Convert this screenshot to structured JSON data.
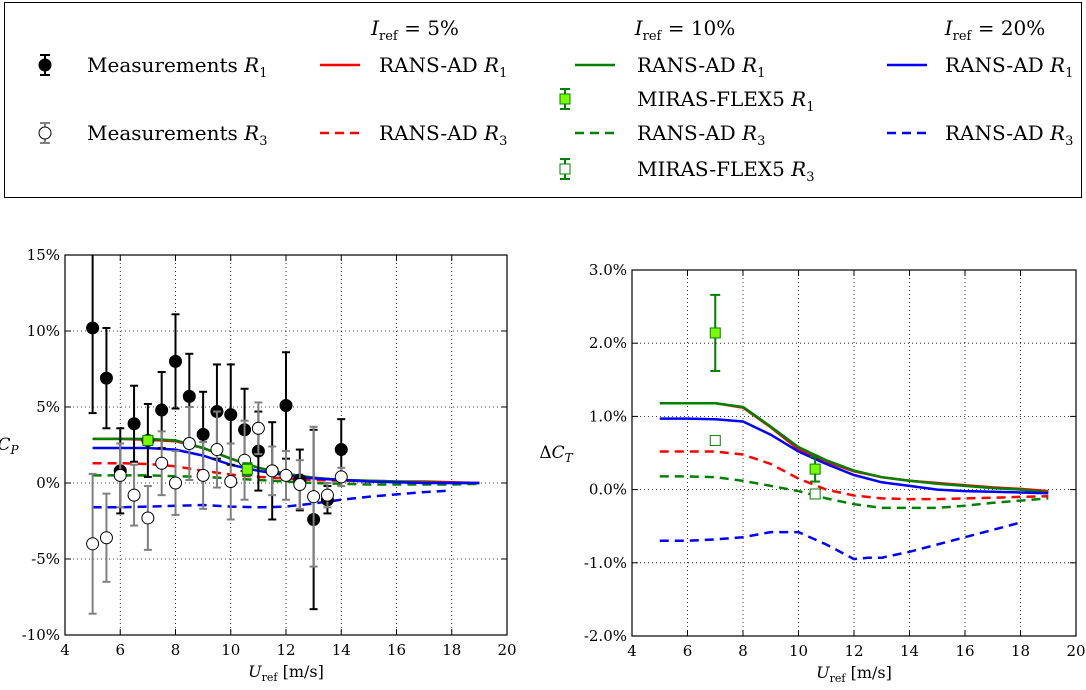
{
  "legend": {
    "groups": [
      {
        "pre": "I",
        "sub": "ref",
        "post": " = 5%"
      },
      {
        "pre": "I",
        "sub": "ref",
        "post": " = 10%"
      },
      {
        "pre": "I",
        "sub": "ref",
        "post": " = 20%"
      }
    ],
    "entries": [
      {
        "text": "Measurements ",
        "var": "R",
        "sub": "1",
        "color": "#000000",
        "marker": "filled-circle"
      },
      {
        "text": "Measurements ",
        "var": "R",
        "sub": "3",
        "color": "#808080",
        "marker": "open-circle"
      },
      {
        "text": "RANS-AD ",
        "var": "R",
        "sub": "1",
        "color": "#ff0000",
        "dash": false
      },
      {
        "text": "RANS-AD ",
        "var": "R",
        "sub": "3",
        "color": "#ff0000",
        "dash": true
      },
      {
        "text": "RANS-AD ",
        "var": "R",
        "sub": "1",
        "color": "#008000",
        "dash": false
      },
      {
        "text": "MIRAS-FLEX5 ",
        "var": "R",
        "sub": "1",
        "color": "#008000",
        "marker": "filled-square"
      },
      {
        "text": "RANS-AD ",
        "var": "R",
        "sub": "3",
        "color": "#008000",
        "dash": true
      },
      {
        "text": "MIRAS-FLEX5 ",
        "var": "R",
        "sub": "3",
        "color": "#008000",
        "marker": "open-square"
      },
      {
        "text": "RANS-AD ",
        "var": "R",
        "sub": "1",
        "color": "#0000ff",
        "dash": false
      },
      {
        "text": "RANS-AD ",
        "var": "R",
        "sub": "3",
        "color": "#0000ff",
        "dash": true
      }
    ]
  },
  "chart_data": [
    {
      "type": "line",
      "xlabel": {
        "var": "U",
        "sub": "ref",
        "unit": " [m/s]"
      },
      "ylabel": {
        "var": "C",
        "sub": "P"
      },
      "xlim": [
        4,
        20
      ],
      "ylim": [
        -10,
        15
      ],
      "xticks": [
        "4",
        "6",
        "8",
        "10",
        "12",
        "14",
        "16",
        "18",
        "20"
      ],
      "yticks": [
        "-10%",
        "-5%",
        "0%",
        "5%",
        "10%",
        "15%"
      ],
      "grid": true,
      "measurements": [
        {
          "name": "R1",
          "color": "#000000",
          "filled": true,
          "points": [
            [
              5,
              10.2,
              5.6
            ],
            [
              5.5,
              6.9,
              3.3
            ],
            [
              6,
              0.8,
              2.8
            ],
            [
              6.5,
              3.9,
              2.5
            ],
            [
              7,
              2.8,
              2.4
            ],
            [
              7.5,
              4.8,
              2.5
            ],
            [
              8,
              8.0,
              3.1
            ],
            [
              8.5,
              5.7,
              2.8
            ],
            [
              9,
              3.2,
              2.8
            ],
            [
              9.5,
              4.7,
              3.1
            ],
            [
              10,
              4.5,
              3.3
            ],
            [
              10.5,
              3.5,
              2.7
            ],
            [
              11,
              2.1,
              2.6
            ],
            [
              11.5,
              0.8,
              3.2
            ],
            [
              12,
              5.1,
              3.5
            ],
            [
              12.5,
              0.2,
              2.0
            ],
            [
              13,
              -2.4,
              5.9
            ],
            [
              13.5,
              -1.1,
              0.9
            ],
            [
              14,
              2.2,
              2.0
            ]
          ]
        },
        {
          "name": "R3",
          "color": "#808080",
          "filled": false,
          "points": [
            [
              5,
              -4.0,
              4.6
            ],
            [
              5.5,
              -3.6,
              2.9
            ],
            [
              6,
              0.5,
              2.1
            ],
            [
              6.5,
              -0.8,
              2.0
            ],
            [
              7,
              -2.3,
              2.1
            ],
            [
              7.5,
              1.3,
              2.1
            ],
            [
              8,
              0.0,
              2.1
            ],
            [
              8.5,
              2.6,
              2.4
            ],
            [
              9,
              0.5,
              2.2
            ],
            [
              9.5,
              2.2,
              2.5
            ],
            [
              10,
              0.1,
              2.5
            ],
            [
              10.5,
              1.5,
              2.6
            ],
            [
              11,
              3.6,
              1.7
            ],
            [
              11.5,
              0.8,
              1.6
            ],
            [
              12,
              0.5,
              1.6
            ],
            [
              12.5,
              -0.1,
              1.6
            ],
            [
              13,
              -0.9,
              4.6
            ],
            [
              13.5,
              -0.8,
              0.8
            ],
            [
              14,
              0.4,
              0.6
            ]
          ]
        }
      ],
      "series": [
        {
          "color": "#ff0000",
          "dash": false,
          "x": [
            5,
            6,
            7,
            8,
            9,
            10,
            11,
            12,
            13,
            14,
            15,
            16,
            17,
            18,
            19
          ],
          "y": [
            2.9,
            2.9,
            2.85,
            2.75,
            2.3,
            1.6,
            1.0,
            0.6,
            0.35,
            0.2,
            0.15,
            0.1,
            0.1,
            0.05,
            0.0
          ]
        },
        {
          "color": "#ff0000",
          "dash": true,
          "x": [
            5,
            6,
            7,
            8,
            9,
            10,
            11,
            12,
            13,
            14,
            15,
            16,
            17,
            18,
            19
          ],
          "y": [
            1.3,
            1.3,
            1.25,
            1.1,
            0.8,
            0.55,
            0.4,
            0.3,
            0.2,
            0.15,
            0.1,
            0.05,
            0.0,
            0.0,
            0.0
          ]
        },
        {
          "color": "#008000",
          "dash": false,
          "x": [
            5,
            6,
            7,
            8,
            9,
            10,
            11,
            12,
            13,
            14,
            15,
            16,
            17,
            18,
            19
          ],
          "y": [
            2.9,
            2.9,
            2.9,
            2.8,
            2.3,
            1.6,
            1.0,
            0.6,
            0.35,
            0.2,
            0.15,
            0.1,
            0.05,
            0.0,
            0.0
          ]
        },
        {
          "color": "#008000",
          "dash": true,
          "x": [
            5,
            6,
            7,
            8,
            9,
            10,
            11,
            12,
            13,
            14,
            15,
            16,
            17,
            18,
            19
          ],
          "y": [
            0.5,
            0.5,
            0.5,
            0.45,
            0.4,
            0.3,
            0.2,
            0.1,
            0.0,
            -0.05,
            -0.1,
            -0.1,
            -0.1,
            -0.1,
            -0.05
          ]
        },
        {
          "color": "#0000ff",
          "dash": false,
          "x": [
            5,
            6,
            7,
            8,
            9,
            10,
            11,
            12,
            13,
            14,
            15,
            16,
            17,
            18,
            19
          ],
          "y": [
            2.3,
            2.3,
            2.3,
            2.2,
            1.8,
            1.2,
            0.8,
            0.5,
            0.3,
            0.2,
            0.1,
            0.05,
            0.0,
            0.0,
            0.0
          ]
        },
        {
          "color": "#0000ff",
          "dash": true,
          "x": [
            5,
            6,
            7,
            8,
            9,
            10,
            11,
            12,
            13,
            14,
            15,
            16,
            17,
            18
          ],
          "y": [
            -1.6,
            -1.6,
            -1.55,
            -1.5,
            -1.45,
            -1.55,
            -1.6,
            -1.55,
            -1.35,
            -1.1,
            -0.9,
            -0.75,
            -0.6,
            -0.5
          ]
        }
      ],
      "miras": [
        {
          "color": "#008000",
          "filled": true,
          "points": [
            [
              7,
              2.8,
              0.3
            ],
            [
              10.6,
              0.9,
              0.4
            ]
          ]
        }
      ]
    },
    {
      "type": "line",
      "xlabel": {
        "var": "U",
        "sub": "ref",
        "unit": " [m/s]"
      },
      "ylabel": {
        "pre": "ΔC",
        "sub": "T"
      },
      "xlim": [
        4,
        20
      ],
      "ylim": [
        -2,
        3
      ],
      "xticks": [
        "4",
        "6",
        "8",
        "10",
        "12",
        "14",
        "16",
        "18",
        "20"
      ],
      "yticks": [
        "-2.0%",
        "-1.0%",
        "0.0%",
        "1.0%",
        "2.0%",
        "3.0%"
      ],
      "grid": true,
      "measurements": [],
      "series": [
        {
          "color": "#ff0000",
          "dash": false,
          "x": [
            5,
            6,
            7,
            8,
            9,
            10,
            11,
            12,
            13,
            14,
            15,
            16,
            17,
            18,
            19
          ],
          "y": [
            1.18,
            1.18,
            1.18,
            1.12,
            0.85,
            0.55,
            0.38,
            0.25,
            0.17,
            0.12,
            0.09,
            0.06,
            0.03,
            0.01,
            -0.02
          ]
        },
        {
          "color": "#ff0000",
          "dash": true,
          "x": [
            5,
            6,
            7,
            8,
            9,
            10,
            11,
            12,
            13,
            14,
            15,
            16,
            17,
            18,
            19
          ],
          "y": [
            0.52,
            0.52,
            0.52,
            0.48,
            0.35,
            0.15,
            0.0,
            -0.08,
            -0.12,
            -0.13,
            -0.13,
            -0.12,
            -0.11,
            -0.1,
            -0.09
          ]
        },
        {
          "color": "#008000",
          "dash": false,
          "x": [
            5,
            6,
            7,
            8,
            9,
            10,
            11,
            12,
            13,
            14,
            15,
            16,
            17,
            18,
            19
          ],
          "y": [
            1.18,
            1.18,
            1.18,
            1.13,
            0.86,
            0.58,
            0.4,
            0.26,
            0.17,
            0.12,
            0.08,
            0.05,
            0.02,
            0.0,
            -0.04
          ]
        },
        {
          "color": "#008000",
          "dash": true,
          "x": [
            5,
            6,
            7,
            8,
            9,
            10,
            11,
            12,
            13,
            14,
            15,
            16,
            17,
            18,
            19
          ],
          "y": [
            0.18,
            0.18,
            0.17,
            0.12,
            0.05,
            -0.02,
            -0.12,
            -0.2,
            -0.25,
            -0.25,
            -0.25,
            -0.22,
            -0.18,
            -0.15,
            -0.12
          ]
        },
        {
          "color": "#0000ff",
          "dash": false,
          "x": [
            5,
            6,
            7,
            8,
            9,
            10,
            11,
            12,
            13,
            14,
            15,
            16,
            17,
            18,
            19
          ],
          "y": [
            0.97,
            0.97,
            0.96,
            0.93,
            0.75,
            0.52,
            0.35,
            0.2,
            0.1,
            0.05,
            0.0,
            -0.02,
            -0.03,
            -0.04,
            -0.05
          ]
        },
        {
          "color": "#0000ff",
          "dash": true,
          "x": [
            5,
            6,
            7,
            8,
            9,
            9.5,
            10,
            11,
            12,
            12.5,
            13,
            14,
            15,
            16,
            17,
            18
          ],
          "y": [
            -0.7,
            -0.7,
            -0.68,
            -0.65,
            -0.58,
            -0.58,
            -0.58,
            -0.75,
            -0.95,
            -0.93,
            -0.93,
            -0.85,
            -0.75,
            -0.65,
            -0.55,
            -0.45
          ]
        }
      ],
      "miras": [
        {
          "color": "#008000",
          "filled": true,
          "points": [
            [
              7,
              2.14,
              0.52
            ],
            [
              10.6,
              0.28,
              0.17
            ]
          ]
        },
        {
          "color": "#008000",
          "filled": false,
          "points": [
            [
              7,
              0.67,
              0.04
            ],
            [
              10.6,
              -0.06,
              0.03
            ]
          ]
        }
      ]
    }
  ]
}
